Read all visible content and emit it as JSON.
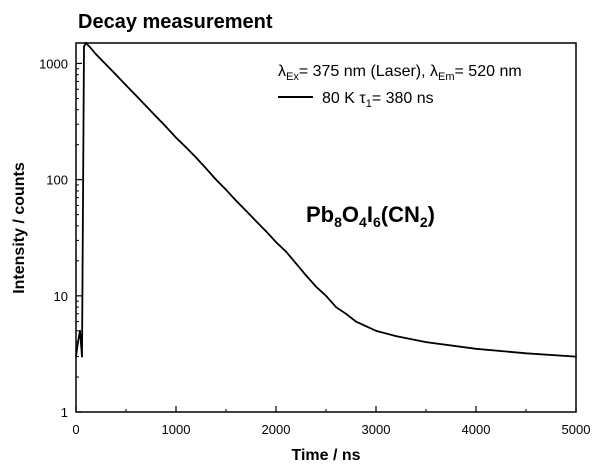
{
  "chart_data": {
    "type": "line",
    "title": "Decay measurement",
    "xlabel": "Time / ns",
    "ylabel": "Intensity / counts",
    "xlim": [
      0,
      5000
    ],
    "ylim": [
      1,
      1500
    ],
    "yscale": "log",
    "x_ticks": [
      0,
      1000,
      2000,
      3000,
      4000,
      5000
    ],
    "x_tick_labels": [
      "0",
      "1000",
      "2000",
      "3000",
      "4000",
      "5000"
    ],
    "y_ticks": [
      1,
      10,
      100,
      1000
    ],
    "y_tick_labels": [
      "1",
      "10",
      "100",
      "1000"
    ],
    "grid": false,
    "legend_position": "top-right",
    "excitation_label": {
      "lambda": "λ",
      "ex_sub": "Ex",
      "ex_text": "= 375 nm (Laser), ",
      "em_sub": "Em",
      "em_text": "= 520 nm"
    },
    "series": [
      {
        "name": "80 K",
        "tau_symbol": "τ",
        "tau_sub": "1",
        "tau_text": "= 380 ns",
        "color": "#000000",
        "points": [
          [
            0,
            3
          ],
          [
            20,
            4
          ],
          [
            40,
            5
          ],
          [
            60,
            3
          ],
          [
            80,
            1400
          ],
          [
            100,
            1500
          ],
          [
            150,
            1350
          ],
          [
            200,
            1200
          ],
          [
            300,
            980
          ],
          [
            400,
            800
          ],
          [
            500,
            650
          ],
          [
            600,
            530
          ],
          [
            700,
            430
          ],
          [
            800,
            350
          ],
          [
            900,
            285
          ],
          [
            1000,
            230
          ],
          [
            1100,
            190
          ],
          [
            1200,
            155
          ],
          [
            1300,
            125
          ],
          [
            1400,
            100
          ],
          [
            1500,
            82
          ],
          [
            1600,
            66
          ],
          [
            1700,
            54
          ],
          [
            1800,
            44
          ],
          [
            1900,
            36
          ],
          [
            2000,
            29
          ],
          [
            2100,
            24
          ],
          [
            2200,
            19
          ],
          [
            2300,
            15
          ],
          [
            2400,
            12
          ],
          [
            2500,
            10
          ],
          [
            2600,
            8
          ],
          [
            2700,
            7
          ],
          [
            2800,
            6
          ],
          [
            3000,
            5
          ],
          [
            3200,
            4.5
          ],
          [
            3500,
            4
          ],
          [
            4000,
            3.5
          ],
          [
            4500,
            3.2
          ],
          [
            5000,
            3
          ]
        ]
      }
    ],
    "annotation": {
      "formula_parts": [
        {
          "text": "Pb",
          "sub": false
        },
        {
          "text": "8",
          "sub": true
        },
        {
          "text": "O",
          "sub": false
        },
        {
          "text": "4",
          "sub": true
        },
        {
          "text": "I",
          "sub": false
        },
        {
          "text": "6",
          "sub": true
        },
        {
          "text": "(CN",
          "sub": false
        },
        {
          "text": "2",
          "sub": true
        },
        {
          "text": ")",
          "sub": false
        }
      ]
    }
  }
}
